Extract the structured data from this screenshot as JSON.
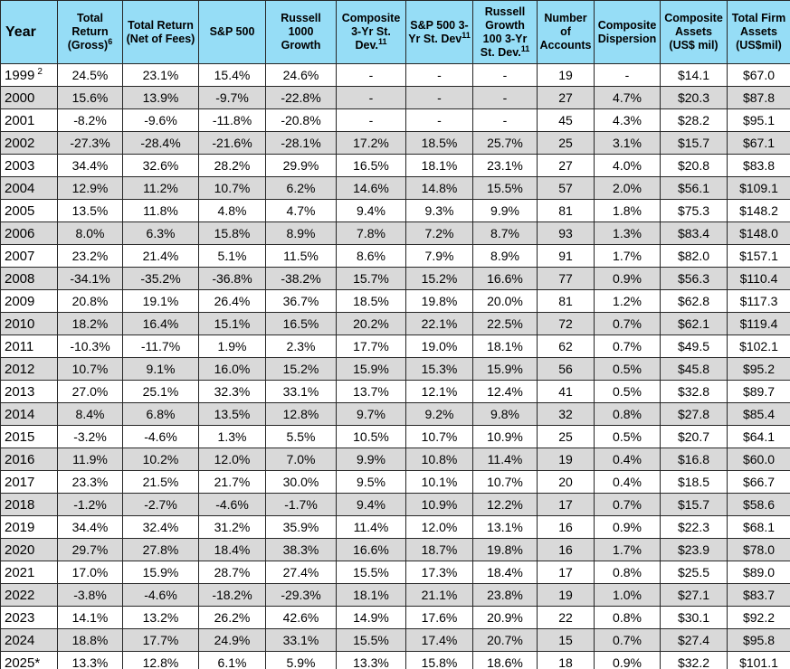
{
  "colors": {
    "header_bg": "#96DDF6",
    "stripe_bg": "#D9D9D9",
    "row_bg": "#FFFFFF",
    "border": "#262626",
    "text": "#000000"
  },
  "table": {
    "columns": [
      {
        "label": "Year",
        "sup": ""
      },
      {
        "label": "Total Return (Gross)",
        "sup": "6"
      },
      {
        "label": "Total Return (Net of Fees)",
        "sup": ""
      },
      {
        "label": "S&P 500",
        "sup": ""
      },
      {
        "label": "Russell 1000 Growth",
        "sup": ""
      },
      {
        "label": "Composite 3-Yr St. Dev.",
        "sup": "11"
      },
      {
        "label": "S&P 500 3-Yr St. Dev",
        "sup": "11"
      },
      {
        "label": "Russell Growth 100 3-Yr St. Dev.",
        "sup": "11"
      },
      {
        "label": "Number of Accounts",
        "sup": ""
      },
      {
        "label": "Composite Dispersion",
        "sup": ""
      },
      {
        "label": "Composite Assets (US$ mil)",
        "sup": ""
      },
      {
        "label": "Total Firm Assets (US$mil)",
        "sup": ""
      }
    ],
    "rows": [
      {
        "year": "1999",
        "year_sup": "2",
        "values": [
          "24.5%",
          "23.1%",
          "15.4%",
          "24.6%",
          "-",
          "-",
          "-",
          "19",
          "-",
          "$14.1",
          "$67.0"
        ]
      },
      {
        "year": "2000",
        "year_sup": "",
        "values": [
          "15.6%",
          "13.9%",
          "-9.7%",
          "-22.8%",
          "-",
          "-",
          "-",
          "27",
          "4.7%",
          "$20.3",
          "$87.8"
        ]
      },
      {
        "year": "2001",
        "year_sup": "",
        "values": [
          "-8.2%",
          "-9.6%",
          "-11.8%",
          "-20.8%",
          "-",
          "-",
          "-",
          "45",
          "4.3%",
          "$28.2",
          "$95.1"
        ]
      },
      {
        "year": "2002",
        "year_sup": "",
        "values": [
          "-27.3%",
          "-28.4%",
          "-21.6%",
          "-28.1%",
          "17.2%",
          "18.5%",
          "25.7%",
          "25",
          "3.1%",
          "$15.7",
          "$67.1"
        ]
      },
      {
        "year": "2003",
        "year_sup": "",
        "values": [
          "34.4%",
          "32.6%",
          "28.2%",
          "29.9%",
          "16.5%",
          "18.1%",
          "23.1%",
          "27",
          "4.0%",
          "$20.8",
          "$83.8"
        ]
      },
      {
        "year": "2004",
        "year_sup": "",
        "values": [
          "12.9%",
          "11.2%",
          "10.7%",
          "6.2%",
          "14.6%",
          "14.8%",
          "15.5%",
          "57",
          "2.0%",
          "$56.1",
          "$109.1"
        ]
      },
      {
        "year": "2005",
        "year_sup": "",
        "values": [
          "13.5%",
          "11.8%",
          "4.8%",
          "4.7%",
          "9.4%",
          "9.3%",
          "9.9%",
          "81",
          "1.8%",
          "$75.3",
          "$148.2"
        ]
      },
      {
        "year": "2006",
        "year_sup": "",
        "values": [
          "8.0%",
          "6.3%",
          "15.8%",
          "8.9%",
          "7.8%",
          "7.2%",
          "8.7%",
          "93",
          "1.3%",
          "$83.4",
          "$148.0"
        ]
      },
      {
        "year": "2007",
        "year_sup": "",
        "values": [
          "23.2%",
          "21.4%",
          "5.1%",
          "11.5%",
          "8.6%",
          "7.9%",
          "8.9%",
          "91",
          "1.7%",
          "$82.0",
          "$157.1"
        ]
      },
      {
        "year": "2008",
        "year_sup": "",
        "values": [
          "-34.1%",
          "-35.2%",
          "-36.8%",
          "-38.2%",
          "15.7%",
          "15.2%",
          "16.6%",
          "77",
          "0.9%",
          "$56.3",
          "$110.4"
        ]
      },
      {
        "year": "2009",
        "year_sup": "",
        "values": [
          "20.8%",
          "19.1%",
          "26.4%",
          "36.7%",
          "18.5%",
          "19.8%",
          "20.0%",
          "81",
          "1.2%",
          "$62.8",
          "$117.3"
        ]
      },
      {
        "year": "2010",
        "year_sup": "",
        "values": [
          "18.2%",
          "16.4%",
          "15.1%",
          "16.5%",
          "20.2%",
          "22.1%",
          "22.5%",
          "72",
          "0.7%",
          "$62.1",
          "$119.4"
        ]
      },
      {
        "year": "2011",
        "year_sup": "",
        "values": [
          "-10.3%",
          "-11.7%",
          "1.9%",
          "2.3%",
          "17.7%",
          "19.0%",
          "18.1%",
          "62",
          "0.7%",
          "$49.5",
          "$102.1"
        ]
      },
      {
        "year": "2012",
        "year_sup": "",
        "values": [
          "10.7%",
          "9.1%",
          "16.0%",
          "15.2%",
          "15.9%",
          "15.3%",
          "15.9%",
          "56",
          "0.5%",
          "$45.8",
          "$95.2"
        ]
      },
      {
        "year": "2013",
        "year_sup": "",
        "values": [
          "27.0%",
          "25.1%",
          "32.3%",
          "33.1%",
          "13.7%",
          "12.1%",
          "12.4%",
          "41",
          "0.5%",
          "$32.8",
          "$89.7"
        ]
      },
      {
        "year": "2014",
        "year_sup": "",
        "values": [
          "8.4%",
          "6.8%",
          "13.5%",
          "12.8%",
          "9.7%",
          "9.2%",
          "9.8%",
          "32",
          "0.8%",
          "$27.8",
          "$85.4"
        ]
      },
      {
        "year": "2015",
        "year_sup": "",
        "values": [
          "-3.2%",
          "-4.6%",
          "1.3%",
          "5.5%",
          "10.5%",
          "10.7%",
          "10.9%",
          "25",
          "0.5%",
          "$20.7",
          "$64.1"
        ]
      },
      {
        "year": "2016",
        "year_sup": "",
        "values": [
          "11.9%",
          "10.2%",
          "12.0%",
          "7.0%",
          "9.9%",
          "10.8%",
          "11.4%",
          "19",
          "0.4%",
          "$16.8",
          "$60.0"
        ]
      },
      {
        "year": "2017",
        "year_sup": "",
        "values": [
          "23.3%",
          "21.5%",
          "21.7%",
          "30.0%",
          "9.5%",
          "10.1%",
          "10.7%",
          "20",
          "0.4%",
          "$18.5",
          "$66.7"
        ]
      },
      {
        "year": "2018",
        "year_sup": "",
        "values": [
          "-1.2%",
          "-2.7%",
          "-4.6%",
          "-1.7%",
          "9.4%",
          "10.9%",
          "12.2%",
          "17",
          "0.7%",
          "$15.7",
          "$58.6"
        ]
      },
      {
        "year": "2019",
        "year_sup": "",
        "values": [
          "34.4%",
          "32.4%",
          "31.2%",
          "35.9%",
          "11.4%",
          "12.0%",
          "13.1%",
          "16",
          "0.9%",
          "$22.3",
          "$68.1"
        ]
      },
      {
        "year": "2020",
        "year_sup": "",
        "values": [
          "29.7%",
          "27.8%",
          "18.4%",
          "38.3%",
          "16.6%",
          "18.7%",
          "19.8%",
          "16",
          "1.7%",
          "$23.9",
          "$78.0"
        ]
      },
      {
        "year": "2021",
        "year_sup": "",
        "values": [
          "17.0%",
          "15.9%",
          "28.7%",
          "27.4%",
          "15.5%",
          "17.3%",
          "18.4%",
          "17",
          "0.8%",
          "$25.5",
          "$89.0"
        ]
      },
      {
        "year": "2022",
        "year_sup": "",
        "values": [
          "-3.8%",
          "-4.6%",
          "-18.2%",
          "-29.3%",
          "18.1%",
          "21.1%",
          "23.8%",
          "19",
          "1.0%",
          "$27.1",
          "$83.7"
        ]
      },
      {
        "year": "2023",
        "year_sup": "",
        "values": [
          "14.1%",
          "13.2%",
          "26.2%",
          "42.6%",
          "14.9%",
          "17.6%",
          "20.9%",
          "22",
          "0.8%",
          "$30.1",
          "$92.2"
        ]
      },
      {
        "year": "2024",
        "year_sup": "",
        "values": [
          "18.8%",
          "17.7%",
          "24.9%",
          "33.1%",
          "15.5%",
          "17.4%",
          "20.7%",
          "15",
          "0.7%",
          "$27.4",
          "$95.8"
        ]
      },
      {
        "year": "2025*",
        "year_sup": "",
        "values": [
          "13.3%",
          "12.8%",
          "6.1%",
          "5.9%",
          "13.3%",
          "15.8%",
          "18.6%",
          "18",
          "0.9%",
          "$32.2",
          "$101.1"
        ]
      }
    ]
  }
}
